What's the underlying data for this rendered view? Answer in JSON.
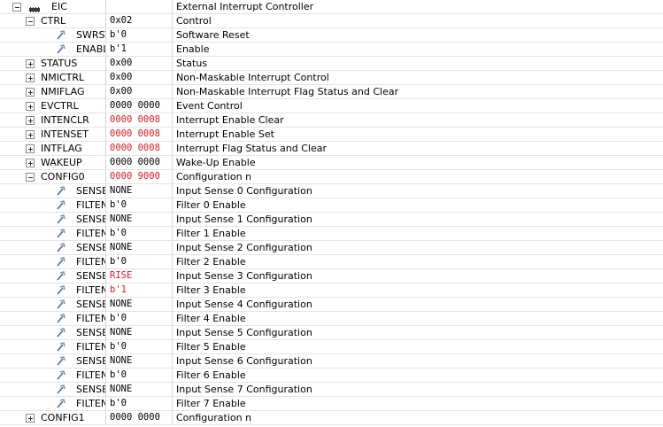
{
  "rows": [
    {
      "kind": "peripheral",
      "name": "EIC",
      "value": "",
      "desc": "External Interrupt Controller",
      "expanded": true
    },
    {
      "kind": "register",
      "name": "CTRL",
      "value": "0x02",
      "desc": "Control",
      "expanded": true
    },
    {
      "kind": "field",
      "name": "SWRST",
      "value": "b'0",
      "desc": "Software Reset"
    },
    {
      "kind": "field",
      "name": "ENABL",
      "value": "b'1",
      "desc": "Enable"
    },
    {
      "kind": "register",
      "name": "STATUS",
      "value": "0x00",
      "desc": "Status",
      "expanded": false
    },
    {
      "kind": "register",
      "name": "NMICTRL",
      "value": "0x00",
      "desc": "Non-Maskable Interrupt Control",
      "expanded": false
    },
    {
      "kind": "register",
      "name": "NMIFLAG",
      "value": "0x00",
      "desc": "Non-Maskable Interrupt Flag Status and Clear",
      "expanded": false
    },
    {
      "kind": "register",
      "name": "EVCTRL",
      "value": "0000 0000",
      "desc": "Event Control",
      "expanded": false
    },
    {
      "kind": "register",
      "name": "INTENCLR",
      "value": "0000 0008",
      "desc": "Interrupt Enable Clear",
      "expanded": false,
      "changed": true
    },
    {
      "kind": "register",
      "name": "INTENSET",
      "value": "0000 0008",
      "desc": "Interrupt Enable Set",
      "expanded": false,
      "changed": true
    },
    {
      "kind": "register",
      "name": "INTFLAG",
      "value": "0000 0008",
      "desc": "Interrupt Flag Status and Clear",
      "expanded": false,
      "changed": true
    },
    {
      "kind": "register",
      "name": "WAKEUP",
      "value": "0000 0000",
      "desc": "Wake-Up Enable",
      "expanded": false
    },
    {
      "kind": "register",
      "name": "CONFIG0",
      "value": "0000 9000",
      "desc": "Configuration n",
      "expanded": true,
      "changed": true
    },
    {
      "kind": "field",
      "name": "SENSE",
      "value": "NONE",
      "desc": "Input Sense 0 Configuration"
    },
    {
      "kind": "field",
      "name": "FILTEN",
      "value": "b'0",
      "desc": "Filter 0 Enable"
    },
    {
      "kind": "field",
      "name": "SENSE",
      "value": "NONE",
      "desc": "Input Sense 1 Configuration"
    },
    {
      "kind": "field",
      "name": "FILTEN",
      "value": "b'0",
      "desc": "Filter 1 Enable"
    },
    {
      "kind": "field",
      "name": "SENSE",
      "value": "NONE",
      "desc": "Input Sense 2 Configuration"
    },
    {
      "kind": "field",
      "name": "FILTEN",
      "value": "b'0",
      "desc": "Filter 2 Enable"
    },
    {
      "kind": "field",
      "name": "SENSE",
      "value": "RISE",
      "desc": "Input Sense 3 Configuration",
      "changed": true
    },
    {
      "kind": "field",
      "name": "FILTEN",
      "value": "b'1",
      "desc": "Filter 3 Enable",
      "changed": true
    },
    {
      "kind": "field",
      "name": "SENSE",
      "value": "NONE",
      "desc": "Input Sense 4 Configuration"
    },
    {
      "kind": "field",
      "name": "FILTEN",
      "value": "b'0",
      "desc": "Filter 4 Enable"
    },
    {
      "kind": "field",
      "name": "SENSE",
      "value": "NONE",
      "desc": "Input Sense 5 Configuration"
    },
    {
      "kind": "field",
      "name": "FILTEN",
      "value": "b'0",
      "desc": "Filter 5 Enable"
    },
    {
      "kind": "field",
      "name": "SENSE",
      "value": "NONE",
      "desc": "Input Sense 6 Configuration"
    },
    {
      "kind": "field",
      "name": "FILTEN",
      "value": "b'0",
      "desc": "Filter 6 Enable"
    },
    {
      "kind": "field",
      "name": "SENSE",
      "value": "NONE",
      "desc": "Input Sense 7 Configuration"
    },
    {
      "kind": "field",
      "name": "FILTEN",
      "value": "b'0",
      "desc": "Filter 7 Enable"
    },
    {
      "kind": "register",
      "name": "CONFIG1",
      "value": "0000 0000",
      "desc": "Configuration n",
      "expanded": false
    }
  ],
  "colors": {
    "changed_value": "#e0191f",
    "grid_line": "#e4e4e4",
    "column_divider": "#d6d6d6"
  },
  "icons": {
    "peripheral": "chip-icon",
    "field": "bitfield-icon"
  }
}
